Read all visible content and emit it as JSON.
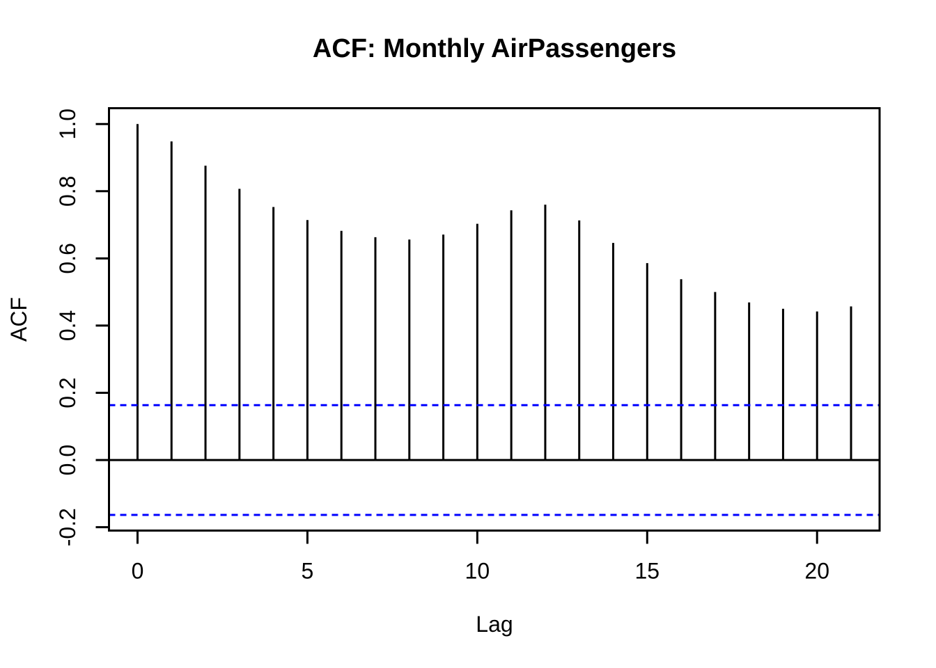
{
  "figure": {
    "background": "#FFFFFF"
  },
  "chart_data": {
    "type": "bar",
    "bar_style": "stem",
    "title": "ACF: Monthly AirPassengers",
    "xlabel": "Lag",
    "ylabel": "ACF",
    "x": [
      0,
      1,
      2,
      3,
      4,
      5,
      6,
      7,
      8,
      9,
      10,
      11,
      12,
      13,
      14,
      15,
      16,
      17,
      18,
      19,
      20,
      21
    ],
    "values": [
      1.0,
      0.948,
      0.876,
      0.807,
      0.753,
      0.714,
      0.682,
      0.663,
      0.656,
      0.671,
      0.703,
      0.743,
      0.76,
      0.713,
      0.646,
      0.586,
      0.538,
      0.5,
      0.469,
      0.45,
      0.442,
      0.457
    ],
    "zero_line": 0,
    "confidence_bounds": {
      "upper": 0.1633,
      "lower": -0.1633,
      "line_style": "dashed",
      "color": "#0000FF"
    },
    "x_ticks": [
      {
        "value": 0,
        "label": "0"
      },
      {
        "value": 5,
        "label": "5"
      },
      {
        "value": 10,
        "label": "10"
      },
      {
        "value": 15,
        "label": "15"
      },
      {
        "value": 20,
        "label": "20"
      }
    ],
    "y_ticks": [
      {
        "value": 1.0,
        "label": "1.0"
      },
      {
        "value": 0.8,
        "label": "0.8"
      },
      {
        "value": 0.6,
        "label": "0.6"
      },
      {
        "value": 0.4,
        "label": "0.4"
      },
      {
        "value": 0.2,
        "label": "0.2"
      },
      {
        "value": 0.0,
        "label": "0.0"
      },
      {
        "value": -0.2,
        "label": "-0.2"
      }
    ],
    "xlim": [
      -0.84,
      21.84
    ],
    "ylim": [
      -0.21,
      1.047
    ],
    "grid": false,
    "legend": false,
    "colors": {
      "spike": "#000000",
      "box": "#000000",
      "confidence": "#0000FF",
      "background": "#FFFFFF",
      "text": "#000000"
    }
  }
}
